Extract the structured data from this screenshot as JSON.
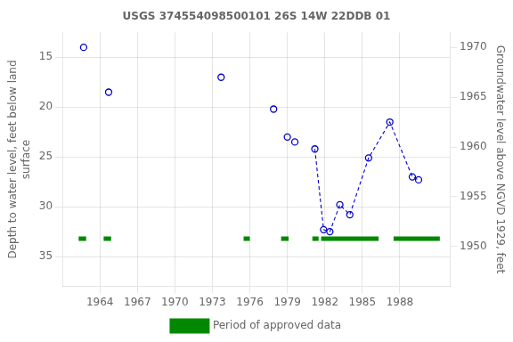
{
  "chart_data": {
    "type": "line",
    "title": "USGS 374554098500101 26S 14W 22DDB 01",
    "ylabel": "Depth to water level, feet below land\nsurface",
    "y2label": "Groundwater level above NGVD 1929, feet",
    "xlim": [
      1961,
      1992
    ],
    "xticks": [
      1964,
      1967,
      1970,
      1973,
      1976,
      1979,
      1982,
      1985,
      1988
    ],
    "ylim": [
      38.0,
      12.5
    ],
    "yticks": [
      15,
      20,
      25,
      30,
      35
    ],
    "y2lim": [
      1946.0,
      1971.5
    ],
    "y2ticks": [
      1950,
      1955,
      1960,
      1965,
      1970
    ],
    "grid": true,
    "legend": "bottom",
    "series": [
      {
        "x": [
          1962.7,
          1964.7,
          1973.7,
          1977.9,
          1979.0,
          1979.6
        ],
        "values": [
          14.0,
          18.5,
          17.0,
          20.2,
          23.0,
          23.5
        ],
        "color": "#0000cc",
        "marker": "open_circle",
        "line_style": "none"
      },
      {
        "x": [
          1981.2,
          1981.9,
          1982.4,
          1983.2,
          1984.0,
          1985.5,
          1987.2,
          1989.0,
          1989.5
        ],
        "values": [
          24.2,
          32.3,
          32.5,
          29.8,
          30.8,
          25.1,
          21.5,
          27.0,
          27.3
        ],
        "color": "#0000cc",
        "marker": "open_circle",
        "line_style": "dashed"
      },
      {
        "name": "Period of approved data",
        "type": "segments",
        "color": "#008800",
        "line_style": "solid",
        "y": 33.2,
        "segments": [
          [
            1962.3,
            1962.9
          ],
          [
            1964.3,
            1964.9
          ],
          [
            1975.5,
            1976.0
          ],
          [
            1978.5,
            1979.1
          ],
          [
            1981.0,
            1981.5
          ],
          [
            1981.7,
            1986.3
          ],
          [
            1987.5,
            1991.2
          ]
        ]
      }
    ]
  }
}
